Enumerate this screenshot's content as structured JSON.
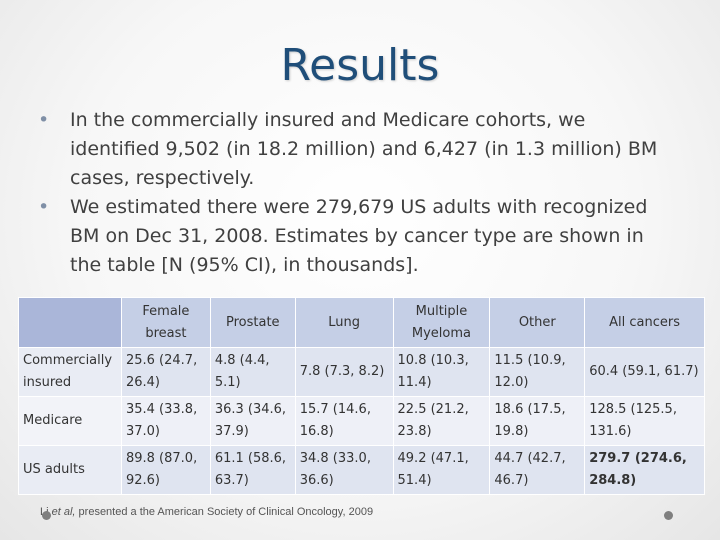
{
  "title": "Results",
  "bullets": [
    "In the commercially insured and Medicare cohorts, we identified 9,502 (in 18.2 million) and 6,427 (in 1.3 million) BM cases, respectively.",
    "We estimated there were 279,679 US adults with recognized BM on Dec 31, 2008. Estimates by cancer type are shown in the table [N (95% CI), in thousands]."
  ],
  "table": {
    "headers": [
      "",
      "Female breast",
      "Prostate",
      "Lung",
      "Multiple Myeloma",
      "Other",
      "All cancers"
    ],
    "rows": [
      {
        "label": "Commercially insured",
        "cells": [
          "25.6 (24.7, 26.4)",
          "4.8 (4.4, 5.1)",
          "7.8 (7.3, 8.2)",
          "10.8 (10.3, 11.4)",
          "11.5 (10.9, 12.0)",
          "60.4 (59.1, 61.7)"
        ]
      },
      {
        "label": "Medicare",
        "cells": [
          "35.4 (33.8, 37.0)",
          "36.3 (34.6, 37.9)",
          "15.7 (14.6, 16.8)",
          "22.5 (21.2, 23.8)",
          "18.6 (17.5, 19.8)",
          "128.5 (125.5, 131.6)"
        ]
      },
      {
        "label": "US adults",
        "cells": [
          "89.8 (87.0, 92.6)",
          "61.1 (58.6, 63.7)",
          "34.8 (33.0, 36.6)",
          "49.2 (47.1, 51.4)",
          "44.7 (42.7, 46.7)",
          "279.7 (274.6, 284.8)"
        ]
      }
    ]
  },
  "footnote": {
    "author": "Li",
    "etal": "et al,",
    "rest": " presented a the American Society of Clinical Oncology, 2009"
  }
}
